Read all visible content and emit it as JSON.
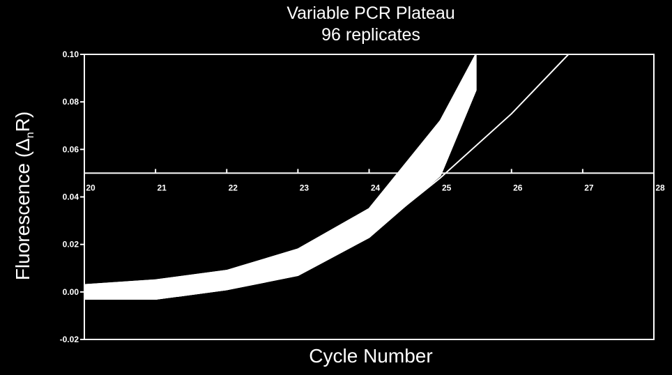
{
  "chart_data": {
    "type": "line",
    "title": "Variable PCR Plateau",
    "subtitle": "96 replicates",
    "xlabel": "Cycle Number",
    "ylabel": "Fluorescence (",
    "ylabel_delta": "Δ",
    "ylabel_sub": "n",
    "ylabel_end": "R)",
    "x_ticks": [
      "20",
      "21",
      "22",
      "23",
      "24",
      "25",
      "26",
      "27",
      "28"
    ],
    "y_ticks": [
      "0.10",
      "0.08",
      "0.06",
      "0.04",
      "0.02",
      "0.00",
      "-0.02"
    ],
    "xlim": [
      20,
      28
    ],
    "ylim": [
      -0.02,
      0.1
    ],
    "threshold": 0.05,
    "grid": false,
    "background": "#000000",
    "line_color": "#ffffff",
    "x": [
      20,
      21,
      22,
      23,
      24,
      25,
      25.5
    ],
    "series": [
      {
        "values": [
          0.003,
          0.005,
          0.009,
          0.018,
          0.035,
          0.072,
          0.1
        ]
      },
      {
        "values": [
          0.002,
          0.004,
          0.008,
          0.017,
          0.034,
          0.07,
          0.1
        ]
      },
      {
        "values": [
          0.001,
          0.003,
          0.008,
          0.016,
          0.033,
          0.068,
          0.1
        ]
      },
      {
        "values": [
          0.0,
          0.003,
          0.007,
          0.015,
          0.032,
          0.066,
          0.1
        ]
      },
      {
        "values": [
          -0.001,
          0.002,
          0.006,
          0.014,
          0.031,
          0.064,
          0.1
        ]
      },
      {
        "values": [
          -0.001,
          0.001,
          0.005,
          0.013,
          0.03,
          0.062,
          0.1
        ]
      },
      {
        "values": [
          -0.002,
          0.0,
          0.004,
          0.012,
          0.029,
          0.06,
          0.098
        ]
      },
      {
        "values": [
          -0.002,
          -0.001,
          0.003,
          0.011,
          0.028,
          0.058,
          0.095
        ]
      },
      {
        "values": [
          0.0,
          -0.002,
          0.002,
          0.009,
          0.025,
          0.055,
          0.09
        ]
      },
      {
        "values": [
          -0.003,
          -0.003,
          0.001,
          0.008,
          0.024,
          0.052,
          0.088
        ]
      },
      {
        "values": [
          -0.003,
          -0.003,
          0.001,
          0.007,
          0.023,
          0.049,
          0.085
        ]
      }
    ],
    "late_series": {
      "x": [
        20,
        21,
        22,
        23,
        24,
        25,
        26,
        26.8
      ],
      "values": [
        -0.003,
        -0.003,
        0.002,
        0.008,
        0.024,
        0.048,
        0.075,
        0.1
      ]
    }
  }
}
